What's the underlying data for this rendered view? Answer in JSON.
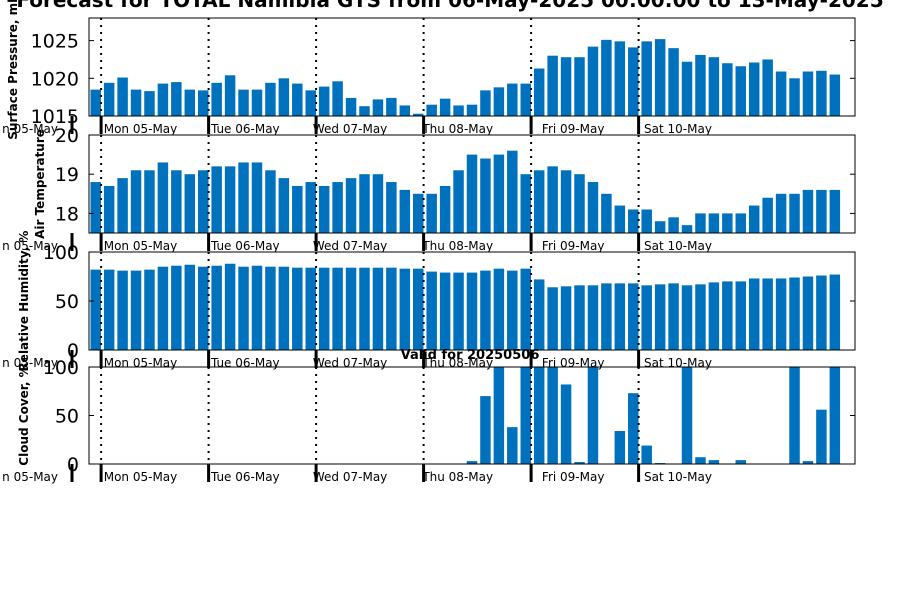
{
  "figure": {
    "title": "Forecast for TOTAL Namibia GTS from 06-May-2025 00:00:00 to 13-May-2025",
    "subtitle": "Valid for 20250506"
  },
  "colors": {
    "bar": "#0072BD",
    "axis": "#000000",
    "background": "#ffffff"
  },
  "chart_data": [
    {
      "type": "bar",
      "ylabel": "Surface Pressure, mb",
      "ylim": [
        1015,
        1028
      ],
      "yticks": [
        1015,
        1020,
        1025
      ],
      "day_labels": [
        "Mon 05-May",
        "Tue 06-May",
        "Wed 07-May",
        "Thu 08-May",
        "Fri 09-May",
        "Sat 10-May"
      ],
      "values": [
        1018.5,
        1019.4,
        1020.1,
        1018.5,
        1018.3,
        1019.3,
        1019.5,
        1018.5,
        1018.4,
        1019.4,
        1020.4,
        1018.5,
        1018.5,
        1019.4,
        1020.0,
        1019.3,
        1018.4,
        1018.9,
        1019.6,
        1017.4,
        1016.3,
        1017.2,
        1017.4,
        1016.4,
        1015.3,
        1016.5,
        1017.3,
        1016.4,
        1016.5,
        1018.4,
        1018.8,
        1019.3,
        1019.3,
        1021.3,
        1023.0,
        1022.8,
        1022.8,
        1024.2,
        1025.1,
        1024.9,
        1024.1,
        1024.9,
        1025.2,
        1024.0,
        1022.2,
        1023.1,
        1022.8,
        1022.0,
        1021.6,
        1022.1,
        1022.5,
        1020.9,
        1020.0,
        1020.9,
        1021.0,
        1020.5
      ]
    },
    {
      "type": "bar",
      "ylabel": "Air Temperature",
      "ylim": [
        17.5,
        20
      ],
      "yticks": [
        18,
        19,
        20
      ],
      "day_labels": [
        "Mon 05-May",
        "Tue 06-May",
        "Wed 07-May",
        "Thu 08-May",
        "Fri 09-May",
        "Sat 10-May"
      ],
      "values": [
        18.8,
        18.7,
        18.9,
        19.1,
        19.1,
        19.3,
        19.1,
        19.0,
        19.1,
        19.2,
        19.2,
        19.3,
        19.3,
        19.1,
        18.9,
        18.7,
        18.8,
        18.7,
        18.8,
        18.9,
        19.0,
        19.0,
        18.8,
        18.6,
        18.5,
        18.5,
        18.7,
        19.1,
        19.5,
        19.4,
        19.5,
        19.6,
        19.0,
        19.1,
        19.2,
        19.1,
        19.0,
        18.8,
        18.5,
        18.2,
        18.1,
        18.1,
        17.8,
        17.9,
        17.7,
        18.0,
        18.0,
        18.0,
        18.0,
        18.2,
        18.4,
        18.5,
        18.5,
        18.6,
        18.6,
        18.6
      ]
    },
    {
      "type": "bar",
      "ylabel": "Relative Humidity, %",
      "ylim": [
        0,
        100
      ],
      "yticks": [
        0,
        50,
        100
      ],
      "day_labels": [
        "Mon 05-May",
        "Tue 06-May",
        "Wed 07-May",
        "Thu 08-May",
        "Fri 09-May",
        "Sat 10-May"
      ],
      "values": [
        82,
        82,
        81,
        81,
        82,
        85,
        86,
        87,
        85,
        86,
        88,
        85,
        86,
        85,
        85,
        84,
        84,
        84,
        84,
        84,
        84,
        84,
        84,
        83,
        83,
        80,
        79,
        79,
        79,
        81,
        83,
        81,
        83,
        72,
        64,
        65,
        66,
        66,
        68,
        68,
        68,
        66,
        67,
        68,
        66,
        67,
        69,
        70,
        70,
        73,
        73,
        73,
        74,
        75,
        76,
        77
      ]
    },
    {
      "type": "bar",
      "ylabel": "Cloud Cover, %",
      "ylim": [
        0,
        100
      ],
      "yticks": [
        0,
        50,
        100
      ],
      "day_labels": [
        "Mon 05-May",
        "Tue 06-May",
        "Wed 07-May",
        "Thu 08-May",
        "Fri 09-May",
        "Sat 10-May"
      ],
      "values": [
        0,
        0,
        0,
        0,
        0,
        0,
        0,
        0,
        0,
        0,
        0,
        0,
        0,
        0,
        0,
        0,
        0,
        0,
        0,
        0,
        0,
        0,
        0,
        0,
        0,
        0,
        0,
        0,
        3,
        70,
        100,
        38,
        100,
        100,
        100,
        82,
        2,
        100,
        0,
        34,
        73,
        19,
        1,
        0,
        100,
        7,
        4,
        0,
        4,
        0,
        0,
        0,
        100,
        3,
        56,
        100
      ]
    }
  ]
}
